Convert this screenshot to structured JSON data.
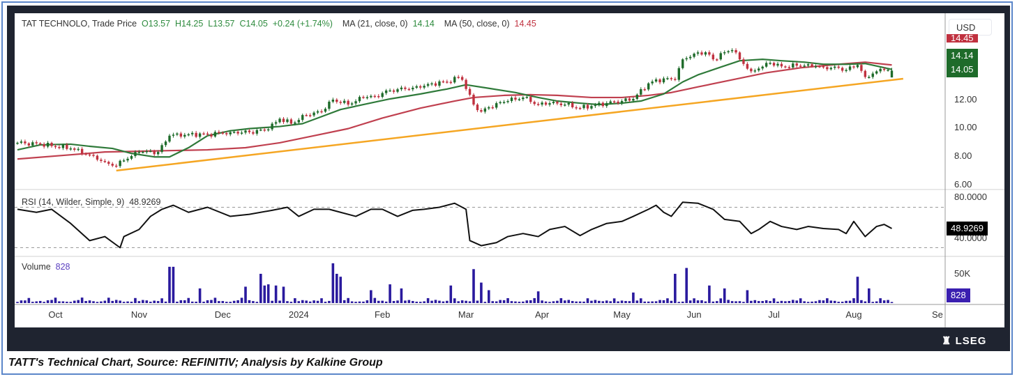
{
  "legend": {
    "symbol": "TAT TECHNOLO, Trade Price",
    "open": "O13.57",
    "high": "H14.25",
    "low": "L13.57",
    "close": "C14.05",
    "change": "+0.24 (+1.74%)",
    "ma21_label": "MA (21, close, 0)",
    "ma21_value": "14.14",
    "ma50_label": "MA (50, close, 0)",
    "ma50_value": "14.45",
    "rsi_label": "RSI (14, Wilder, Simple, 9)",
    "rsi_value": "48.9269",
    "volume_label": "Volume",
    "volume_value": "828"
  },
  "axis": {
    "currency": "USD",
    "price_ticks": [
      "12.00",
      "10.00",
      "8.00",
      "6.00"
    ],
    "tag_ma50": "14.45",
    "tag_ma21": "14.14",
    "tag_close": "14.05",
    "rsi_ticks": [
      "80.0000",
      "40.0000"
    ],
    "rsi_tag": "48.9269",
    "volume_tick": "50K",
    "volume_tag": "828",
    "months": [
      "Oct",
      "Nov",
      "Dec",
      "2024",
      "Feb",
      "Mar",
      "Apr",
      "May",
      "Jun",
      "Jul",
      "Aug",
      "Se"
    ]
  },
  "branding": "LSEG",
  "caption": "TATT's Technical Chart, Source: REFINITIV; Analysis by Kalkine Group",
  "colors": {
    "up": "#1e6b2a",
    "down": "#c0313f",
    "ma21": "#2f7a3a",
    "ma50": "#c0404f",
    "trend": "#f5a623",
    "rsi": "#111111",
    "volume": "#2a1a9e"
  },
  "chart_data": {
    "type": "candlestick",
    "x_unit": "trading day index (0 = late Sep 2023)",
    "month_ticks_day": [
      10,
      32,
      54,
      74,
      96,
      118,
      138,
      159,
      178,
      199,
      220,
      242
    ],
    "price_range": [
      5.8,
      16.2
    ],
    "close_keypoints": [
      [
        0,
        8.95
      ],
      [
        6,
        8.85
      ],
      [
        14,
        8.55
      ],
      [
        19,
        8.1
      ],
      [
        23,
        7.6
      ],
      [
        26,
        7.3
      ],
      [
        28,
        7.7
      ],
      [
        32,
        8.3
      ],
      [
        37,
        8.3
      ],
      [
        40,
        9.45
      ],
      [
        45,
        9.55
      ],
      [
        50,
        9.55
      ],
      [
        56,
        9.7
      ],
      [
        61,
        9.7
      ],
      [
        66,
        9.9
      ],
      [
        69,
        10.65
      ],
      [
        72,
        10.3
      ],
      [
        76,
        10.9
      ],
      [
        80,
        11.15
      ],
      [
        83,
        12.0
      ],
      [
        87,
        11.65
      ],
      [
        91,
        12.15
      ],
      [
        94,
        12.25
      ],
      [
        98,
        12.65
      ],
      [
        102,
        12.75
      ],
      [
        106,
        12.85
      ],
      [
        109,
        13.15
      ],
      [
        113,
        13.25
      ],
      [
        116,
        13.6
      ],
      [
        117,
        13.4
      ],
      [
        120,
        11.65
      ],
      [
        122,
        11.15
      ],
      [
        126,
        11.75
      ],
      [
        129,
        11.9
      ],
      [
        133,
        12.15
      ],
      [
        137,
        11.65
      ],
      [
        140,
        11.75
      ],
      [
        144,
        11.65
      ],
      [
        148,
        11.4
      ],
      [
        151,
        11.55
      ],
      [
        155,
        11.75
      ],
      [
        159,
        11.9
      ],
      [
        162,
        12.05
      ],
      [
        166,
        13.15
      ],
      [
        170,
        13.5
      ],
      [
        173,
        13.4
      ],
      [
        175,
        14.85
      ],
      [
        178,
        15.25
      ],
      [
        181,
        15.35
      ],
      [
        183,
        14.85
      ],
      [
        186,
        15.35
      ],
      [
        188,
        15.5
      ],
      [
        190,
        14.85
      ],
      [
        193,
        14.0
      ],
      [
        195,
        14.2
      ],
      [
        198,
        14.6
      ],
      [
        201,
        14.35
      ],
      [
        205,
        14.4
      ],
      [
        208,
        14.5
      ],
      [
        212,
        14.3
      ],
      [
        216,
        14.25
      ],
      [
        218,
        14.1
      ],
      [
        221,
        14.45
      ],
      [
        223,
        13.6
      ],
      [
        226,
        14.0
      ],
      [
        228,
        14.1
      ],
      [
        230,
        14.05
      ]
    ],
    "last_candle": {
      "open": 13.57,
      "high": 14.25,
      "low": 13.57,
      "close": 14.05
    },
    "ma21": [
      [
        0,
        8.45
      ],
      [
        6,
        8.8
      ],
      [
        14,
        8.85
      ],
      [
        19,
        8.7
      ],
      [
        25,
        8.55
      ],
      [
        30,
        8.2
      ],
      [
        36,
        7.95
      ],
      [
        40,
        7.95
      ],
      [
        45,
        8.6
      ],
      [
        50,
        9.45
      ],
      [
        56,
        9.8
      ],
      [
        61,
        9.95
      ],
      [
        69,
        10.1
      ],
      [
        75,
        10.3
      ],
      [
        80,
        10.8
      ],
      [
        85,
        11.3
      ],
      [
        91,
        11.65
      ],
      [
        98,
        12.05
      ],
      [
        106,
        12.4
      ],
      [
        113,
        12.75
      ],
      [
        118,
        13.05
      ],
      [
        124,
        12.8
      ],
      [
        131,
        12.5
      ],
      [
        137,
        12.15
      ],
      [
        142,
        11.9
      ],
      [
        148,
        11.75
      ],
      [
        153,
        11.65
      ],
      [
        159,
        11.75
      ],
      [
        164,
        11.9
      ],
      [
        170,
        12.4
      ],
      [
        175,
        13.25
      ],
      [
        179,
        13.75
      ],
      [
        185,
        14.3
      ],
      [
        190,
        14.75
      ],
      [
        196,
        14.85
      ],
      [
        201,
        14.75
      ],
      [
        207,
        14.65
      ],
      [
        212,
        14.5
      ],
      [
        218,
        14.5
      ],
      [
        223,
        14.55
      ],
      [
        230,
        14.14
      ]
    ],
    "ma50": [
      [
        0,
        7.8
      ],
      [
        14,
        8.1
      ],
      [
        23,
        8.3
      ],
      [
        32,
        8.35
      ],
      [
        41,
        8.4
      ],
      [
        50,
        8.45
      ],
      [
        60,
        8.6
      ],
      [
        69,
        8.95
      ],
      [
        78,
        9.45
      ],
      [
        87,
        9.95
      ],
      [
        96,
        10.7
      ],
      [
        106,
        11.4
      ],
      [
        115,
        11.9
      ],
      [
        120,
        12.15
      ],
      [
        128,
        12.3
      ],
      [
        135,
        12.35
      ],
      [
        142,
        12.3
      ],
      [
        151,
        12.15
      ],
      [
        159,
        12.15
      ],
      [
        166,
        12.3
      ],
      [
        172,
        12.5
      ],
      [
        179,
        12.9
      ],
      [
        188,
        13.4
      ],
      [
        197,
        13.9
      ],
      [
        206,
        14.25
      ],
      [
        216,
        14.5
      ],
      [
        223,
        14.65
      ],
      [
        230,
        14.45
      ]
    ],
    "trendline": [
      [
        26,
        6.98
      ],
      [
        233,
        13.48
      ]
    ],
    "rsi_range": [
      26,
      86
    ],
    "rsi_levels": [
      70,
      30
    ],
    "rsi": [
      [
        0,
        68
      ],
      [
        5,
        65
      ],
      [
        9,
        68
      ],
      [
        14,
        54
      ],
      [
        19,
        37
      ],
      [
        23,
        41
      ],
      [
        27,
        30
      ],
      [
        28,
        41
      ],
      [
        32,
        48
      ],
      [
        35,
        61
      ],
      [
        38,
        68
      ],
      [
        41,
        72
      ],
      [
        45,
        65
      ],
      [
        50,
        70
      ],
      [
        56,
        61
      ],
      [
        61,
        63
      ],
      [
        67,
        67
      ],
      [
        71,
        70
      ],
      [
        74,
        61
      ],
      [
        78,
        68
      ],
      [
        82,
        68
      ],
      [
        85,
        65
      ],
      [
        89,
        61
      ],
      [
        93,
        68
      ],
      [
        96,
        68
      ],
      [
        100,
        61
      ],
      [
        104,
        67
      ],
      [
        107,
        68
      ],
      [
        111,
        70
      ],
      [
        115,
        74
      ],
      [
        118,
        68
      ],
      [
        119,
        37
      ],
      [
        122,
        32
      ],
      [
        126,
        35
      ],
      [
        129,
        41
      ],
      [
        133,
        44
      ],
      [
        137,
        41
      ],
      [
        140,
        48
      ],
      [
        144,
        51
      ],
      [
        148,
        42
      ],
      [
        151,
        48
      ],
      [
        155,
        54
      ],
      [
        159,
        56
      ],
      [
        162,
        61
      ],
      [
        166,
        68
      ],
      [
        168,
        72
      ],
      [
        170,
        65
      ],
      [
        172,
        61
      ],
      [
        175,
        75
      ],
      [
        179,
        74
      ],
      [
        183,
        68
      ],
      [
        186,
        58
      ],
      [
        190,
        56
      ],
      [
        193,
        44
      ],
      [
        195,
        48
      ],
      [
        198,
        56
      ],
      [
        201,
        51
      ],
      [
        205,
        48
      ],
      [
        208,
        51
      ],
      [
        212,
        49
      ],
      [
        216,
        48
      ],
      [
        218,
        44
      ],
      [
        220,
        56
      ],
      [
        223,
        41
      ],
      [
        226,
        51
      ],
      [
        228,
        53
      ],
      [
        230,
        48.93
      ]
    ],
    "volume_range_k": [
      0,
      70
    ],
    "volume_spikes_k": [
      [
        40,
        62
      ],
      [
        41,
        62
      ],
      [
        48,
        25
      ],
      [
        60,
        28
      ],
      [
        64,
        50
      ],
      [
        65,
        30
      ],
      [
        66,
        32
      ],
      [
        68,
        30
      ],
      [
        70,
        28
      ],
      [
        83,
        68
      ],
      [
        84,
        50
      ],
      [
        85,
        45
      ],
      [
        93,
        22
      ],
      [
        98,
        32
      ],
      [
        101,
        25
      ],
      [
        114,
        30
      ],
      [
        120,
        58
      ],
      [
        122,
        35
      ],
      [
        124,
        22
      ],
      [
        137,
        20
      ],
      [
        162,
        18
      ],
      [
        173,
        50
      ],
      [
        176,
        60
      ],
      [
        182,
        30
      ],
      [
        186,
        25
      ],
      [
        192,
        22
      ],
      [
        221,
        45
      ],
      [
        224,
        25
      ]
    ],
    "volume_last_k": 0.828
  }
}
